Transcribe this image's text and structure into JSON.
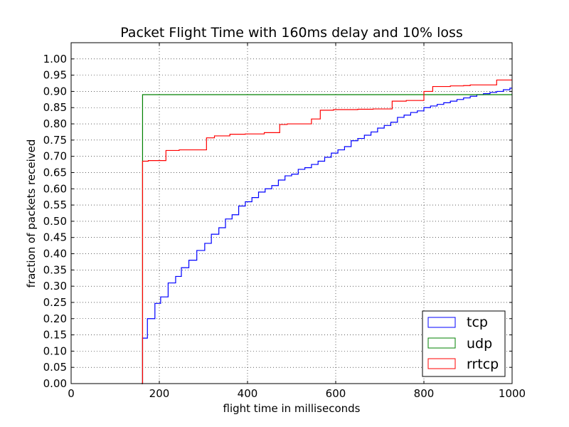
{
  "chart_data": {
    "type": "line",
    "step": true,
    "title": "Packet Flight Time with 160ms delay and 10% loss",
    "xlabel": "flight time in milliseconds",
    "ylabel": "fraction of packets received",
    "xlim": [
      0,
      1000
    ],
    "ylim": [
      0,
      1.05
    ],
    "xticks": [
      0,
      200,
      400,
      600,
      800,
      1000
    ],
    "xtick_labels": [
      "0",
      "200",
      "400",
      "600",
      "800",
      "1000"
    ],
    "yticks": [
      0,
      0.05,
      0.1,
      0.15,
      0.2,
      0.25,
      0.3,
      0.35,
      0.4,
      0.45,
      0.5,
      0.55,
      0.6,
      0.65,
      0.7,
      0.75,
      0.8,
      0.85,
      0.9,
      0.95,
      1.0
    ],
    "ytick_labels": [
      "0.00",
      "0.05",
      "0.10",
      "0.15",
      "0.20",
      "0.25",
      "0.30",
      "0.35",
      "0.40",
      "0.45",
      "0.50",
      "0.55",
      "0.60",
      "0.65",
      "0.70",
      "0.75",
      "0.80",
      "0.85",
      "0.90",
      "0.95",
      "1.00"
    ],
    "grid": true,
    "legend_position": "bottom-right",
    "series": [
      {
        "name": "tcp",
        "color": "#0000ff",
        "x": [
          160,
          162,
          173,
          190,
          203,
          220,
          237,
          250,
          267,
          285,
          303,
          318,
          335,
          350,
          365,
          380,
          395,
          410,
          425,
          440,
          455,
          470,
          485,
          500,
          515,
          530,
          545,
          560,
          575,
          590,
          605,
          620,
          635,
          650,
          665,
          680,
          695,
          710,
          725,
          740,
          755,
          770,
          785,
          800,
          815,
          830,
          845,
          860,
          875,
          890,
          905,
          920,
          935,
          950,
          965,
          980,
          995,
          1000
        ],
        "y": [
          0.0,
          0.14,
          0.2,
          0.247,
          0.267,
          0.31,
          0.33,
          0.357,
          0.38,
          0.41,
          0.432,
          0.46,
          0.48,
          0.507,
          0.52,
          0.547,
          0.56,
          0.573,
          0.59,
          0.6,
          0.61,
          0.627,
          0.64,
          0.645,
          0.66,
          0.665,
          0.675,
          0.685,
          0.697,
          0.71,
          0.72,
          0.73,
          0.748,
          0.755,
          0.765,
          0.775,
          0.787,
          0.795,
          0.805,
          0.82,
          0.827,
          0.835,
          0.84,
          0.85,
          0.855,
          0.86,
          0.865,
          0.87,
          0.875,
          0.88,
          0.885,
          0.89,
          0.893,
          0.897,
          0.9,
          0.905,
          0.91,
          0.91
        ]
      },
      {
        "name": "udp",
        "color": "#008000",
        "x": [
          160,
          162,
          1000
        ],
        "y": [
          0.0,
          0.89,
          0.89
        ]
      },
      {
        "name": "rrtcp",
        "color": "#ff0000",
        "x": [
          160,
          162,
          175,
          215,
          245,
          307,
          325,
          360,
          395,
          438,
          473,
          490,
          545,
          565,
          595,
          625,
          650,
          685,
          728,
          760,
          800,
          820,
          860,
          890,
          905,
          940,
          965,
          1000
        ],
        "y": [
          0.0,
          0.685,
          0.687,
          0.718,
          0.72,
          0.757,
          0.763,
          0.768,
          0.769,
          0.773,
          0.798,
          0.8,
          0.815,
          0.842,
          0.844,
          0.844,
          0.845,
          0.846,
          0.87,
          0.872,
          0.9,
          0.915,
          0.917,
          0.918,
          0.92,
          0.92,
          0.935,
          0.935
        ]
      }
    ]
  }
}
